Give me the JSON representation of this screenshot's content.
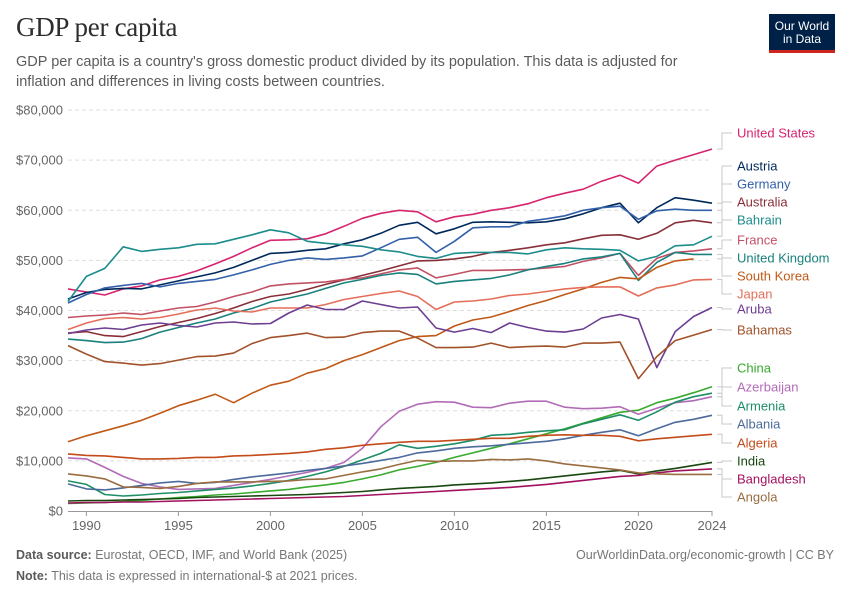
{
  "header": {
    "title": "GDP per capita",
    "subtitle": "GDP per capita is a country's gross domestic product divided by its population. This data is adjusted for inflation and differences in living costs between countries.",
    "logo_line1": "Our World",
    "logo_line2": "in Data"
  },
  "footer": {
    "source_label": "Data source:",
    "source_text": "Eurostat, OECD, IMF, and World Bank (2025)",
    "note_label": "Note:",
    "note_text": "This data is expressed in international-$ at 2021 prices.",
    "link_text": "OurWorldinData.org/economic-growth | CC BY"
  },
  "chart_data": {
    "type": "line",
    "title": "GDP per capita",
    "xlabel": "",
    "ylabel": "",
    "xlim": [
      1989,
      2024
    ],
    "ylim": [
      0,
      80000
    ],
    "yticks": [
      0,
      10000,
      20000,
      30000,
      40000,
      50000,
      60000,
      70000,
      80000
    ],
    "ytick_labels": [
      "$0",
      "$10,000",
      "$20,000",
      "$30,000",
      "$40,000",
      "$50,000",
      "$60,000",
      "$70,000",
      "$80,000"
    ],
    "xticks": [
      1990,
      1995,
      2000,
      2005,
      2010,
      2015,
      2020,
      2024
    ],
    "xtick_labels": [
      "1990",
      "1995",
      "2000",
      "2005",
      "2010",
      "2015",
      "2020",
      "2024"
    ],
    "grid": "horizontal-dashed",
    "legend": "right-end-labels",
    "x": [
      1989,
      1990,
      1991,
      1992,
      1993,
      1994,
      1995,
      1996,
      1997,
      1998,
      1999,
      2000,
      2001,
      2002,
      2003,
      2004,
      2005,
      2006,
      2007,
      2008,
      2009,
      2010,
      2011,
      2012,
      2013,
      2014,
      2015,
      2016,
      2017,
      2018,
      2019,
      2020,
      2021,
      2022,
      2023,
      2024
    ],
    "series": [
      {
        "name": "United States",
        "color": "#d6246e",
        "values": [
          44300,
          43700,
          43100,
          44300,
          44900,
          46100,
          46800,
          47900,
          49300,
          50800,
          52500,
          54000,
          54100,
          54300,
          55300,
          56800,
          58400,
          59400,
          60000,
          59700,
          57700,
          58700,
          59200,
          60000,
          60500,
          61300,
          62500,
          63400,
          64200,
          65800,
          67000,
          65400,
          68800,
          70000,
          71100,
          72200
        ]
      },
      {
        "name": "Austria",
        "color": "#00295b",
        "values": [
          42300,
          43600,
          44200,
          44400,
          44300,
          45100,
          45900,
          46700,
          47500,
          48600,
          50000,
          51400,
          51600,
          52000,
          52300,
          53300,
          54100,
          55400,
          57000,
          57600,
          55300,
          56300,
          57600,
          57700,
          57600,
          57500,
          57700,
          58300,
          59300,
          60500,
          61400,
          57500,
          60500,
          62500,
          62000,
          61400
        ]
      },
      {
        "name": "Germany",
        "color": "#3360a9",
        "values": [
          41500,
          43200,
          44500,
          45000,
          45400,
          44700,
          45400,
          45800,
          46200,
          47100,
          48100,
          49200,
          50000,
          50500,
          50200,
          50500,
          50900,
          52500,
          54200,
          54600,
          51600,
          53800,
          56500,
          56700,
          56700,
          57800,
          58300,
          58900,
          60000,
          60500,
          60800,
          58200,
          59900,
          60200,
          60000,
          60000
        ]
      },
      {
        "name": "Australia",
        "color": "#883039",
        "values": [
          35500,
          35800,
          35000,
          34800,
          35800,
          36800,
          37600,
          38400,
          39400,
          40500,
          41800,
          42800,
          43300,
          44200,
          45200,
          46100,
          47000,
          47900,
          48900,
          49900,
          50000,
          50300,
          50800,
          51600,
          52000,
          52500,
          53100,
          53500,
          54300,
          55000,
          55100,
          54200,
          55400,
          57500,
          58000,
          57500
        ]
      },
      {
        "name": "Bahrain",
        "color": "#1c8c8c",
        "values": [
          41800,
          46800,
          48400,
          52700,
          51800,
          52200,
          52500,
          53200,
          53300,
          54200,
          55100,
          56100,
          55500,
          53800,
          53400,
          53100,
          52800,
          52100,
          51700,
          50800,
          50400,
          51400,
          51600,
          51600,
          51600,
          51300,
          52100,
          52500,
          52300,
          52200,
          52000,
          49900,
          50800,
          52900,
          53100,
          54800
        ]
      },
      {
        "name": "France",
        "color": "#c15065",
        "values": [
          38600,
          38900,
          39100,
          39500,
          39200,
          39900,
          40500,
          40800,
          41700,
          42800,
          43700,
          44900,
          45300,
          45500,
          45700,
          46200,
          46500,
          47300,
          48100,
          48500,
          46500,
          47200,
          48000,
          48000,
          48100,
          48200,
          48500,
          48800,
          49800,
          50500,
          51400,
          47000,
          50400,
          51600,
          51900,
          52300
        ]
      },
      {
        "name": "United Kingdom",
        "color": "#18817e",
        "values": [
          34300,
          34000,
          33600,
          33700,
          34400,
          35700,
          36600,
          37500,
          38300,
          39500,
          40400,
          41700,
          42500,
          43300,
          44400,
          45500,
          46200,
          47000,
          47500,
          47200,
          45300,
          45800,
          46100,
          46400,
          47100,
          48100,
          48800,
          49400,
          50300,
          50700,
          51400,
          46000,
          49600,
          51600,
          51200,
          51200
        ]
      },
      {
        "name": "South Korea",
        "color": "#c05917",
        "values": [
          13800,
          15000,
          16000,
          17000,
          18100,
          19500,
          21000,
          22100,
          23300,
          21600,
          23500,
          25100,
          25900,
          27500,
          28400,
          30000,
          31200,
          32600,
          34000,
          34800,
          35000,
          36900,
          38100,
          38700,
          39800,
          41000,
          42000,
          43200,
          44300,
          45600,
          46600,
          46300,
          48600,
          49900,
          50300,
          null
        ]
      },
      {
        "name": "Japan",
        "color": "#e56e5a",
        "values": [
          36200,
          37500,
          38400,
          38600,
          38300,
          38600,
          39300,
          40100,
          40500,
          39900,
          39700,
          40500,
          40500,
          40500,
          41200,
          42200,
          42800,
          43400,
          43900,
          42800,
          40200,
          41700,
          41900,
          42300,
          43000,
          43300,
          43800,
          44300,
          44600,
          44700,
          44700,
          42900,
          44500,
          45100,
          46100,
          46200
        ]
      },
      {
        "name": "Aruba",
        "color": "#6d3e91",
        "values": [
          35400,
          36100,
          36500,
          36200,
          37100,
          37500,
          37000,
          36700,
          37500,
          37700,
          37300,
          37400,
          39500,
          41100,
          40200,
          40200,
          41900,
          41200,
          40500,
          40700,
          36500,
          35700,
          36400,
          35600,
          37500,
          36600,
          35900,
          35700,
          36300,
          38500,
          39200,
          38300,
          28600,
          35800,
          38800,
          40600
        ]
      },
      {
        "name": "Bahamas",
        "color": "#a2522b",
        "values": [
          33000,
          31300,
          29800,
          29500,
          29100,
          29400,
          30100,
          30800,
          30900,
          31500,
          33400,
          34600,
          35000,
          35500,
          34600,
          34700,
          35600,
          35900,
          35900,
          34500,
          32600,
          32600,
          32700,
          33500,
          32600,
          32800,
          32900,
          32700,
          33500,
          33500,
          33700,
          26400,
          30800,
          34000,
          35100,
          36200
        ]
      },
      {
        "name": "China",
        "color": "#38aa2e",
        "values": [
          1500,
          1600,
          1700,
          1900,
          2100,
          2400,
          2700,
          2900,
          3200,
          3400,
          3700,
          4000,
          4300,
          4800,
          5200,
          5700,
          6400,
          7200,
          8200,
          8900,
          9700,
          10700,
          11600,
          12500,
          13400,
          14400,
          15400,
          16400,
          17500,
          18600,
          19700,
          20100,
          21600,
          22500,
          23600,
          24800
        ]
      },
      {
        "name": "Azerbaijan",
        "color": "#b16cb8",
        "values": [
          10600,
          10400,
          8700,
          6900,
          5500,
          4800,
          4300,
          4400,
          4500,
          5100,
          5700,
          6300,
          7000,
          7700,
          8500,
          9700,
          12500,
          16800,
          19900,
          21300,
          21800,
          21700,
          20700,
          20600,
          21500,
          21900,
          21900,
          20700,
          20400,
          20500,
          20800,
          19300,
          20500,
          21600,
          22000,
          22800
        ]
      },
      {
        "name": "Armenia",
        "color": "#1d8e66",
        "values": [
          6000,
          5300,
          3300,
          3000,
          3200,
          3500,
          3700,
          4000,
          4300,
          4600,
          5000,
          5500,
          6100,
          6900,
          7800,
          8900,
          10200,
          11500,
          13200,
          12500,
          12900,
          13400,
          14100,
          15100,
          15300,
          15700,
          16000,
          16200,
          17400,
          18300,
          19200,
          18100,
          19800,
          21700,
          22800,
          23500
        ]
      },
      {
        "name": "Albania",
        "color": "#4c6a9c",
        "values": [
          5400,
          4400,
          4200,
          4600,
          5100,
          5600,
          5900,
          5500,
          5700,
          6300,
          6800,
          7200,
          7600,
          8100,
          8500,
          9000,
          9500,
          10100,
          10700,
          11600,
          12000,
          12500,
          12800,
          13000,
          13300,
          13600,
          13900,
          14400,
          15100,
          15700,
          16200,
          15000,
          16400,
          17700,
          18300,
          19100
        ]
      },
      {
        "name": "Algeria",
        "color": "#c44b1a",
        "values": [
          11400,
          11100,
          11000,
          10700,
          10400,
          10400,
          10500,
          10700,
          10700,
          11000,
          11100,
          11300,
          11500,
          11800,
          12300,
          12600,
          13100,
          13400,
          13700,
          13900,
          13900,
          14100,
          14300,
          14500,
          14500,
          14900,
          15100,
          15200,
          15100,
          15100,
          14900,
          14000,
          14400,
          14700,
          15000,
          15300
        ]
      },
      {
        "name": "India",
        "color": "#18470f",
        "values": [
          2000,
          2100,
          2100,
          2200,
          2300,
          2400,
          2500,
          2700,
          2800,
          2900,
          3000,
          3100,
          3200,
          3300,
          3500,
          3700,
          3900,
          4200,
          4500,
          4700,
          4900,
          5200,
          5400,
          5600,
          5900,
          6200,
          6600,
          7000,
          7400,
          7800,
          8100,
          7400,
          8000,
          8500,
          9100,
          9700
        ]
      },
      {
        "name": "Bangladesh",
        "color": "#a2115f",
        "values": [
          1600,
          1700,
          1700,
          1800,
          1800,
          1900,
          2000,
          2100,
          2200,
          2300,
          2400,
          2500,
          2600,
          2700,
          2800,
          2900,
          3100,
          3300,
          3500,
          3700,
          3900,
          4100,
          4300,
          4500,
          4700,
          5000,
          5300,
          5700,
          6100,
          6500,
          6900,
          7100,
          7600,
          8000,
          8200,
          8400
        ]
      },
      {
        "name": "Angola",
        "color": "#9a6d40",
        "values": [
          7400,
          7000,
          6400,
          4800,
          4700,
          4500,
          4900,
          5500,
          5800,
          5800,
          5800,
          5900,
          6000,
          6300,
          6400,
          7100,
          7800,
          8400,
          9300,
          10100,
          9900,
          10000,
          10000,
          10300,
          10200,
          10400,
          10000,
          9400,
          9000,
          8600,
          8200,
          7600,
          7400,
          7300,
          7300,
          7300
        ]
      }
    ]
  }
}
